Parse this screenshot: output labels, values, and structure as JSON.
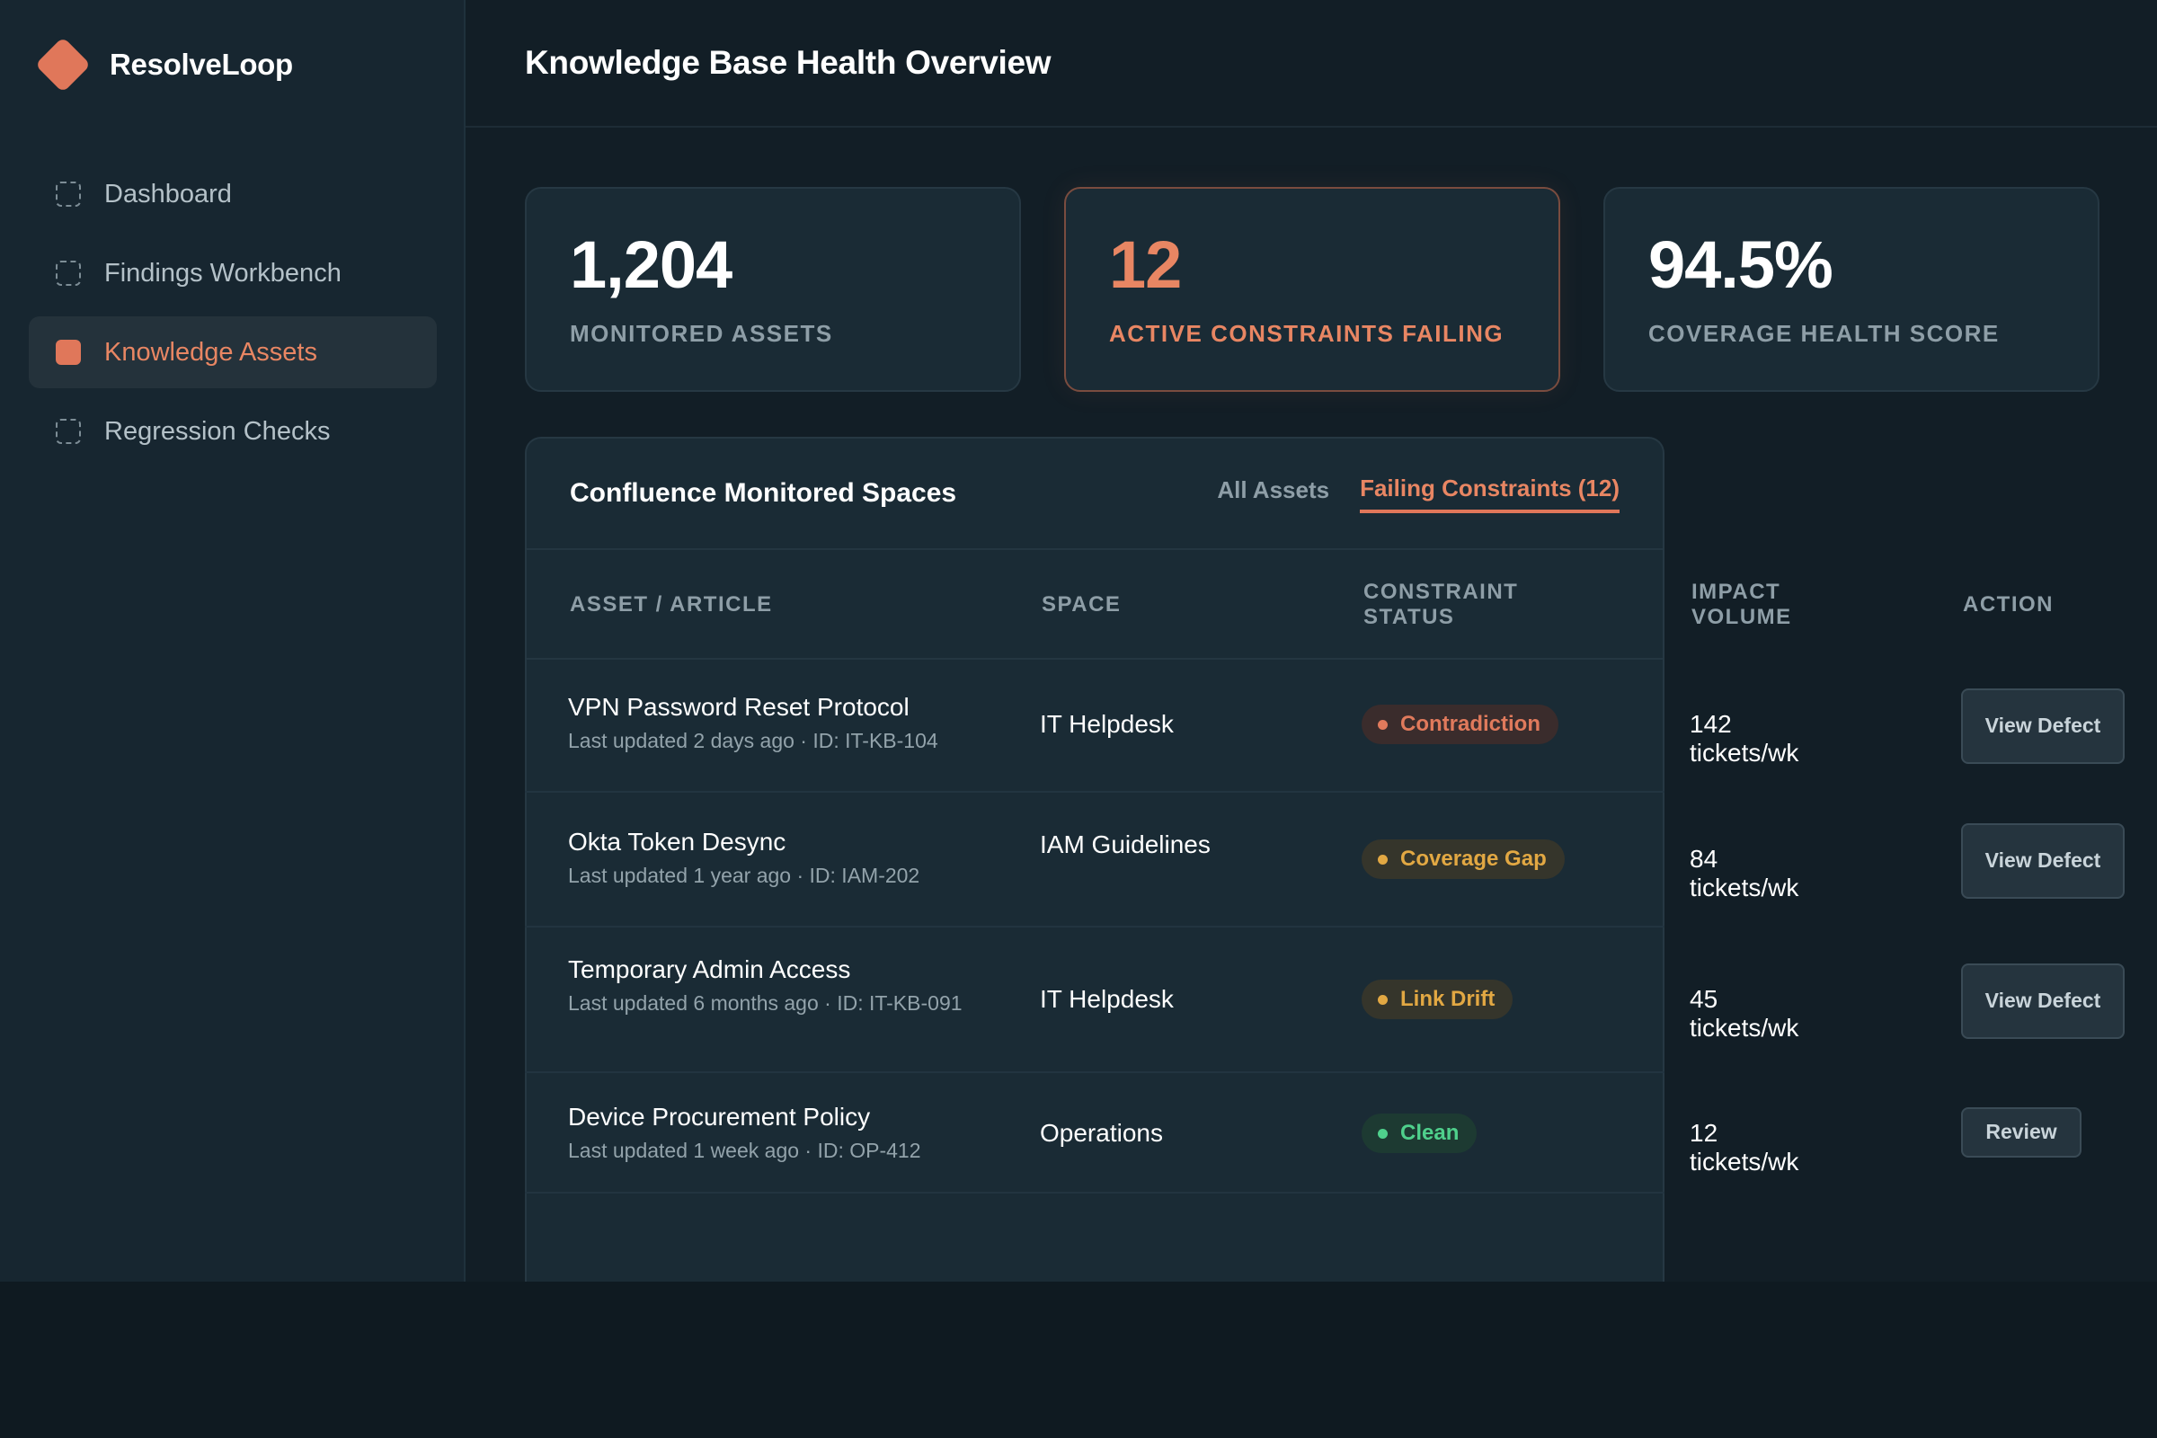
{
  "brand": {
    "name": "ResolveLoop",
    "accent": "#e0775a"
  },
  "nav": [
    {
      "label": "Dashboard",
      "active": false
    },
    {
      "label": "Findings Workbench",
      "active": false
    },
    {
      "label": "Knowledge Assets",
      "active": true
    },
    {
      "label": "Regression Checks",
      "active": false
    }
  ],
  "header": {
    "title": "Knowledge Base Health Overview"
  },
  "stats": [
    {
      "value": "1,204",
      "label": "MONITORED ASSETS"
    },
    {
      "value": "12",
      "label": "ACTIVE CONSTRAINTS FAILING"
    },
    {
      "value": "94.5%",
      "label": "COVERAGE HEALTH SCORE"
    }
  ],
  "panel": {
    "title": "Confluence Monitored Spaces",
    "tabs": [
      {
        "label": "All Assets",
        "active": false
      },
      {
        "label": "Failing Constraints (12)",
        "active": true
      }
    ],
    "columns": {
      "asset": "ASSET / ARTICLE",
      "space": "SPACE",
      "status": "CONSTRAINT STATUS",
      "impact": "IMPACT VOLUME",
      "action": "ACTION"
    },
    "rows": [
      {
        "title": "VPN Password Reset Protocol",
        "meta": "Last updated 2 days ago · ID: IT-KB-104",
        "space": "IT Helpdesk",
        "status": "Contradiction",
        "status_color": "#e07a5c",
        "impact": "142 tickets/wk",
        "action": "View Defect"
      },
      {
        "title": "Okta Token Desync",
        "meta": "Last updated 1 year ago · ID: IAM-202",
        "space": "IAM Guidelines",
        "status": "Coverage Gap",
        "status_color": "#e2a843",
        "impact": "84 tickets/wk",
        "action": "View Defect"
      },
      {
        "title": "Temporary Admin Access",
        "meta": "Last updated 6 months ago · ID: IT-KB-091",
        "space": "IT Helpdesk",
        "status": "Link Drift",
        "status_color": "#e2a843",
        "impact": "45 tickets/wk",
        "action": "View Defect"
      },
      {
        "title": "Device Procurement Policy",
        "meta": "Last updated 1 week ago · ID: OP-412",
        "space": "Operations",
        "status": "Clean",
        "status_color": "#4fd08c",
        "impact": "12 tickets/wk",
        "action": "Review"
      }
    ]
  }
}
